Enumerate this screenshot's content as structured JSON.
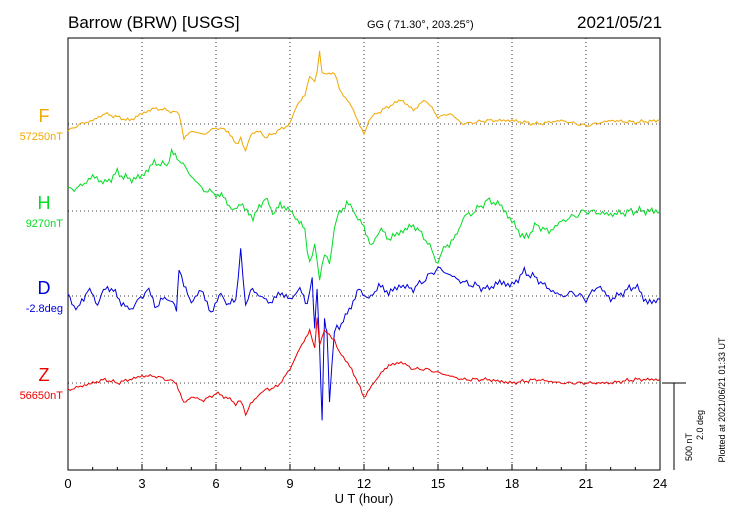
{
  "header": {
    "station": "Barrow (BRW)  [USGS]",
    "coords": "GG ( 71.30°, 203.25°)",
    "date": "2021/05/21"
  },
  "side_labels": {
    "scale_nt": "500 nT",
    "scale_deg": "2.0 deg",
    "plotted": "Plotted at 2021/06/21 01:33 UT"
  },
  "chart_data": {
    "type": "line",
    "xlabel": "U T (hour)",
    "xlim": [
      0,
      24
    ],
    "xticks": [
      0,
      3,
      6,
      9,
      12,
      15,
      18,
      21,
      24
    ],
    "grid": true,
    "series": [
      {
        "name": "F",
        "baseline_label": "57250nT",
        "color": "#f0a800",
        "x": [
          0,
          0.5,
          1,
          1.5,
          2,
          2.5,
          3,
          3.5,
          4,
          4.5,
          4.7,
          5,
          5.5,
          6,
          6.5,
          6.8,
          7,
          7.2,
          7.4,
          7.8,
          8,
          8.5,
          9,
          9.3,
          9.6,
          9.8,
          10,
          10.1,
          10.2,
          10.3,
          10.5,
          10.8,
          11,
          11.5,
          12,
          12.2,
          12.5,
          13,
          13.5,
          14,
          14.5,
          15,
          15.5,
          16,
          17,
          18,
          19,
          20,
          21,
          22,
          23,
          24
        ],
        "values": [
          -40,
          0,
          20,
          60,
          40,
          20,
          60,
          90,
          80,
          60,
          -80,
          -40,
          -60,
          -20,
          -40,
          -120,
          -80,
          -160,
          -60,
          -40,
          -80,
          -40,
          0,
          120,
          160,
          280,
          240,
          300,
          420,
          300,
          280,
          300,
          200,
          100,
          -60,
          20,
          60,
          100,
          140,
          80,
          140,
          40,
          60,
          0,
          20,
          20,
          0,
          20,
          -10,
          20,
          10,
          20
        ]
      },
      {
        "name": "H",
        "baseline_label": "9270nT",
        "color": "#00dd22",
        "x": [
          0,
          0.5,
          1,
          1.5,
          2,
          2.5,
          3,
          3.5,
          4,
          4.2,
          4.5,
          5,
          5.5,
          6,
          6.3,
          6.7,
          7,
          7.5,
          8,
          8.3,
          8.6,
          9,
          9.3,
          9.6,
          9.8,
          10,
          10.2,
          10.4,
          10.6,
          10.8,
          11,
          11.3,
          11.6,
          12,
          12.3,
          12.7,
          13,
          13.5,
          14,
          14.5,
          15,
          15.3,
          15.7,
          16,
          16.5,
          17,
          17.5,
          18,
          18.5,
          19,
          19.5,
          20,
          21,
          22,
          23,
          24
        ],
        "values": [
          120,
          140,
          200,
          160,
          220,
          180,
          200,
          280,
          260,
          340,
          300,
          200,
          120,
          100,
          80,
          0,
          40,
          -40,
          80,
          -20,
          40,
          0,
          -40,
          -120,
          -300,
          -200,
          -380,
          -250,
          -300,
          -100,
          0,
          40,
          0,
          -100,
          -200,
          -100,
          -160,
          -120,
          -80,
          -160,
          -300,
          -200,
          -160,
          -40,
          0,
          60,
          40,
          -60,
          -160,
          -80,
          -120,
          -60,
          0,
          -20,
          0,
          0
        ]
      },
      {
        "name": "D",
        "baseline_label": "-2.8deg",
        "color": "#0000dd",
        "x": [
          0,
          0.4,
          0.8,
          1.2,
          1.6,
          2,
          2.4,
          2.8,
          3.2,
          3.6,
          4,
          4.4,
          4.5,
          4.7,
          5,
          5.4,
          5.8,
          6.2,
          6.5,
          6.8,
          7,
          7.2,
          7.4,
          7.8,
          8.2,
          8.6,
          9,
          9.4,
          9.7,
          9.9,
          10,
          10.1,
          10.2,
          10.3,
          10.4,
          10.5,
          10.6,
          10.8,
          11,
          11.4,
          11.8,
          12.2,
          12.6,
          13,
          13.5,
          14,
          14.5,
          15,
          15.5,
          16,
          16.5,
          17,
          17.5,
          18,
          18.5,
          19,
          19.5,
          20,
          20.5,
          21,
          21.5,
          22,
          22.5,
          23,
          23.5,
          24
        ],
        "values": [
          0,
          -80,
          40,
          -40,
          60,
          0,
          -80,
          -40,
          40,
          -60,
          0,
          -80,
          160,
          60,
          -40,
          40,
          -100,
          20,
          -60,
          -20,
          260,
          -60,
          40,
          0,
          -40,
          20,
          -20,
          40,
          -40,
          100,
          -200,
          60,
          -300,
          -700,
          -150,
          -200,
          -600,
          -200,
          -180,
          -80,
          40,
          -20,
          60,
          20,
          60,
          40,
          100,
          160,
          120,
          80,
          60,
          40,
          80,
          60,
          140,
          100,
          40,
          0,
          20,
          -20,
          60,
          -20,
          20,
          60,
          -40,
          -20
        ]
      },
      {
        "name": "Z",
        "baseline_label": "56650nT",
        "color": "#ee0000",
        "x": [
          0,
          0.5,
          1,
          1.5,
          2,
          2.5,
          3,
          3.5,
          4,
          4.4,
          4.7,
          5,
          5.5,
          6,
          6.4,
          6.8,
          7,
          7.2,
          7.4,
          7.8,
          8,
          8.5,
          9,
          9.4,
          9.8,
          10,
          10.1,
          10.2,
          10.4,
          10.6,
          10.8,
          11,
          11.5,
          12,
          12.3,
          12.7,
          13,
          13.5,
          14,
          14.5,
          15,
          15.5,
          16,
          17,
          18,
          19,
          20,
          21,
          22,
          23,
          24
        ],
        "values": [
          -40,
          -20,
          0,
          20,
          0,
          20,
          40,
          40,
          20,
          0,
          -120,
          -80,
          -100,
          -60,
          -80,
          -120,
          -100,
          -180,
          -120,
          -60,
          -40,
          -20,
          80,
          200,
          300,
          200,
          380,
          220,
          300,
          280,
          240,
          180,
          80,
          -80,
          -20,
          60,
          100,
          120,
          80,
          80,
          60,
          40,
          20,
          20,
          0,
          20,
          0,
          0,
          0,
          20,
          20
        ]
      }
    ]
  }
}
